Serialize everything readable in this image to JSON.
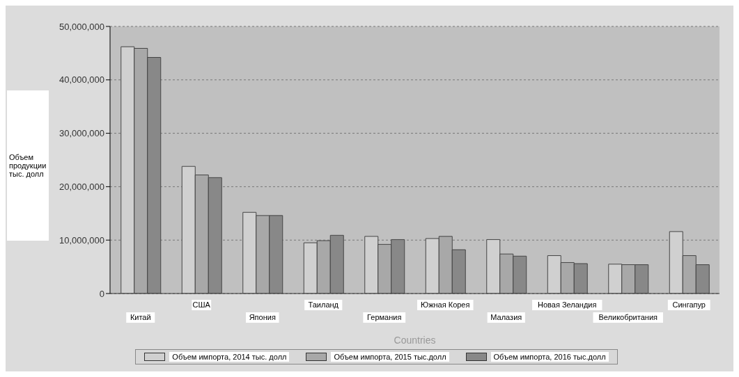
{
  "chart_data": {
    "type": "bar",
    "xlabel": "Countries",
    "ylabel": "Объем продукции тыс. долл",
    "categories": [
      "Китай",
      "США",
      "Япония",
      "Таиланд",
      "Германия",
      "Южная Корея",
      "Малазия",
      "Новая Зеландия",
      "Великобритания",
      "Сингапур"
    ],
    "series": [
      {
        "name": "Объем импорта, 2014 тыс. долл",
        "color": "#d0d0d0",
        "values": [
          46200000,
          23800000,
          15200000,
          9500000,
          10700000,
          10300000,
          10100000,
          7100000,
          5500000,
          11600000
        ]
      },
      {
        "name": "Объем импорта, 2015 тыс.долл",
        "color": "#a8a8a8",
        "values": [
          45900000,
          22200000,
          14600000,
          9900000,
          9200000,
          10700000,
          7400000,
          5800000,
          5400000,
          7100000
        ]
      },
      {
        "name": "Объем импорта, 2016 тыс.долл",
        "color": "#888888",
        "values": [
          44200000,
          21700000,
          14600000,
          10900000,
          10100000,
          8200000,
          7000000,
          5600000,
          5400000,
          5400000
        ]
      }
    ],
    "ylim": [
      0,
      50000000
    ],
    "yticks": [
      0,
      {
        "value": 10000000,
        "label": "10,000,000"
      },
      {
        "value": 20000000,
        "label": "20,000,000"
      },
      {
        "value": 30000000,
        "label": "30,000,000"
      },
      {
        "value": 40000000,
        "label": "40,000,000"
      },
      {
        "value": 50000000,
        "label": "50,000,000"
      }
    ],
    "grid": "y",
    "legend": "bottom"
  }
}
